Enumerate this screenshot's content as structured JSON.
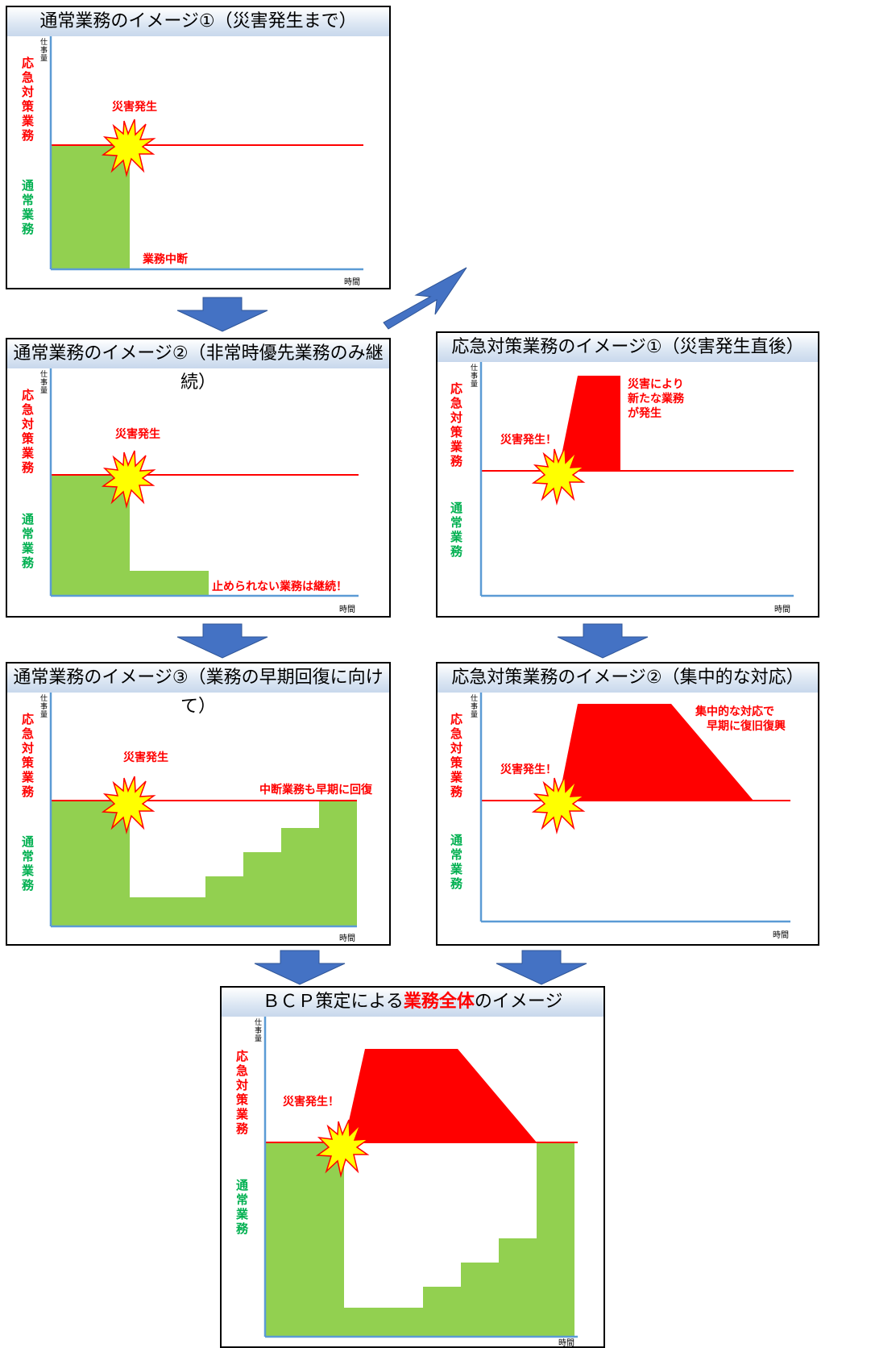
{
  "axis": {
    "ylabel": "仕事量",
    "xlabel": "時間"
  },
  "legend": {
    "emergency": "応急対策業務",
    "normal": "通常業務"
  },
  "colors": {
    "normal": "#92d050",
    "emergency": "#ff0000",
    "axis": "#5b9bd5",
    "arrow": "#4472c4",
    "normal_text": "#00b050",
    "burst": "#ffff00"
  },
  "panels": {
    "p1": {
      "title": "通常業務のイメージ①（災害発生まで）",
      "label_disaster": "災害発生",
      "label_stop": "業務中断"
    },
    "p2": {
      "title": "通常業務のイメージ②（非常時優先業務のみ継続）",
      "label_disaster": "災害発生",
      "label_continue": "止められない業務は継続！"
    },
    "p3": {
      "title": "応急対策業務のイメージ①（災害発生直後）",
      "label_disaster": "災害発生！",
      "label_new": [
        "災害により",
        "新たな業務",
        "が発生"
      ]
    },
    "p4": {
      "title": "通常業務のイメージ③（業務の早期回復に向けて）",
      "label_disaster": "災害発生",
      "label_recover": "中断業務も早期に回復"
    },
    "p5": {
      "title": "応急対策業務のイメージ②（集中的な対応）",
      "label_disaster": "災害発生！",
      "label_focus": [
        "集中的な対応で",
        "早期に復旧復興"
      ]
    },
    "p6": {
      "title_pre": "ＢＣＰ策定による",
      "title_highlight": "業務全体",
      "title_post": "のイメージ",
      "label_disaster": "災害発生！"
    }
  }
}
